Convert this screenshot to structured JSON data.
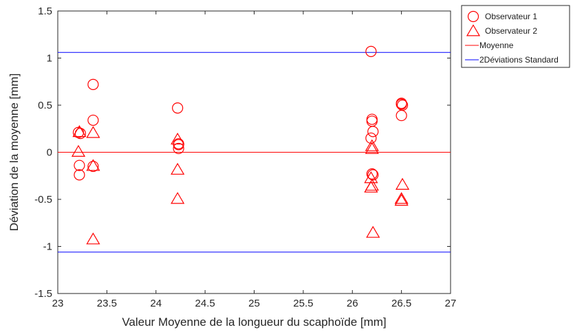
{
  "chart_data": {
    "type": "scatter",
    "xlabel": "Valeur Moyenne de la longueur du scaphoïde [mm]",
    "ylabel": "Déviation de la moyenne [mm]",
    "xlim": [
      23,
      27
    ],
    "ylim": [
      -1.5,
      1.5
    ],
    "x_ticks": [
      "23",
      "23.5",
      "24",
      "24.5",
      "25",
      "25.5",
      "26",
      "26.5",
      "27"
    ],
    "y_ticks": [
      "1.5",
      "1",
      "0.5",
      "0",
      "-0.5",
      "-1",
      "-1.5"
    ],
    "grid": false,
    "legend_position": "top-right",
    "series": [
      {
        "name": "Observateur 1",
        "marker": "circle",
        "color": "#ff0000",
        "x": [
          23.21,
          23.22,
          23.22,
          23.23,
          23.36,
          23.36,
          23.36,
          24.22,
          24.23,
          24.23,
          24.23,
          26.19,
          26.2,
          26.19,
          26.2,
          26.21,
          26.2,
          26.21,
          26.5,
          26.5,
          26.51,
          26.5
        ],
        "y": [
          0.21,
          -0.14,
          -0.24,
          0.2,
          0.72,
          0.34,
          -0.15,
          0.47,
          0.09,
          0.04,
          0.08,
          1.07,
          0.35,
          0.15,
          0.33,
          0.22,
          -0.23,
          -0.24,
          0.51,
          0.52,
          0.5,
          0.39
        ]
      },
      {
        "name": "Observateur 2",
        "marker": "triangle",
        "color": "#ff0000",
        "x": [
          23.22,
          23.21,
          23.36,
          23.36,
          23.36,
          24.22,
          24.22,
          24.22,
          26.2,
          26.2,
          26.19,
          26.19,
          26.2,
          26.21,
          26.51,
          26.5,
          26.5
        ],
        "y": [
          0.21,
          0.0,
          0.2,
          -0.15,
          -0.93,
          0.13,
          -0.19,
          -0.5,
          0.06,
          0.03,
          -0.28,
          -0.38,
          -0.36,
          -0.86,
          -0.35,
          -0.5,
          -0.52
        ]
      }
    ],
    "lines": [
      {
        "name": "Moyenne",
        "y": 0,
        "color": "#ff0000"
      },
      {
        "name": "2Déviations Standard",
        "y": [
          1.06,
          -1.06
        ],
        "color": "#0000ff"
      }
    ]
  }
}
